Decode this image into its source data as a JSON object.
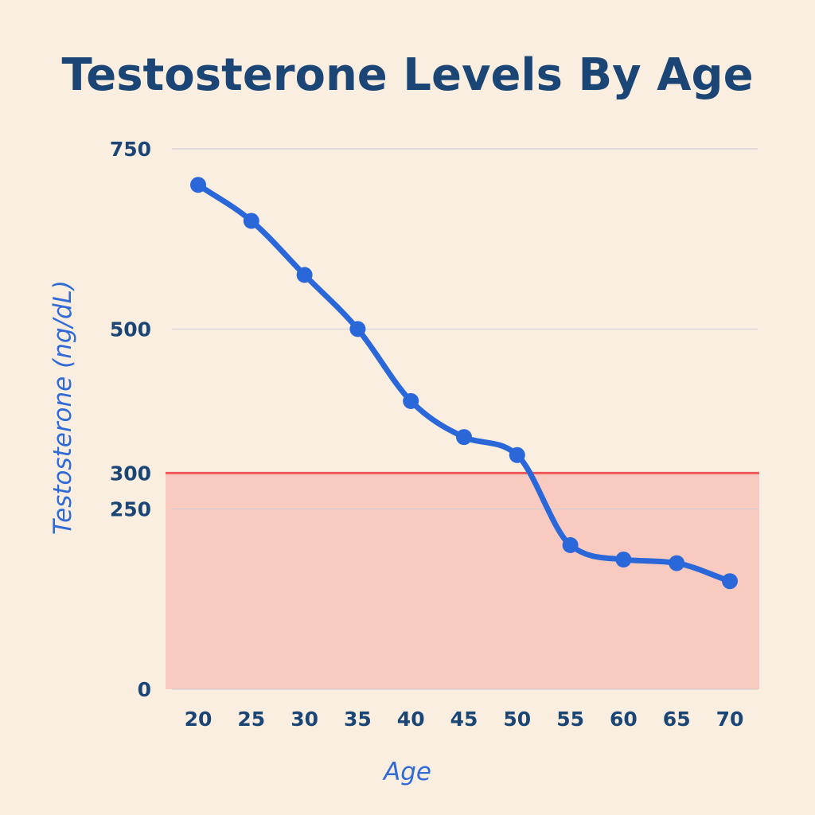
{
  "chart_data": {
    "type": "line",
    "title": "Testosterone Levels By Age",
    "xlabel": "Age",
    "ylabel": "Testosterone (ng/dL)",
    "x": [
      20,
      25,
      30,
      35,
      40,
      45,
      50,
      55,
      60,
      65,
      70
    ],
    "series": [
      {
        "values": [
          700,
          650,
          575,
          500,
          400,
          350,
          325,
          200,
          180,
          175,
          150
        ]
      }
    ],
    "yticks": [
      0,
      250,
      300,
      500,
      750
    ],
    "ylim": [
      0,
      750
    ],
    "grid": true,
    "threshold": {
      "value": 300,
      "label": "300"
    },
    "colors": {
      "line": "#2a67d8",
      "marker": "#2a67d8",
      "threshold_line": "#f0585a",
      "threshold_fill": "#f9cbc0",
      "grid": "#c9ccd4",
      "tick_text": "#1a4574",
      "title": "#1a4574",
      "axis_title": "#2f6ad6",
      "background": "#faeee1"
    }
  }
}
